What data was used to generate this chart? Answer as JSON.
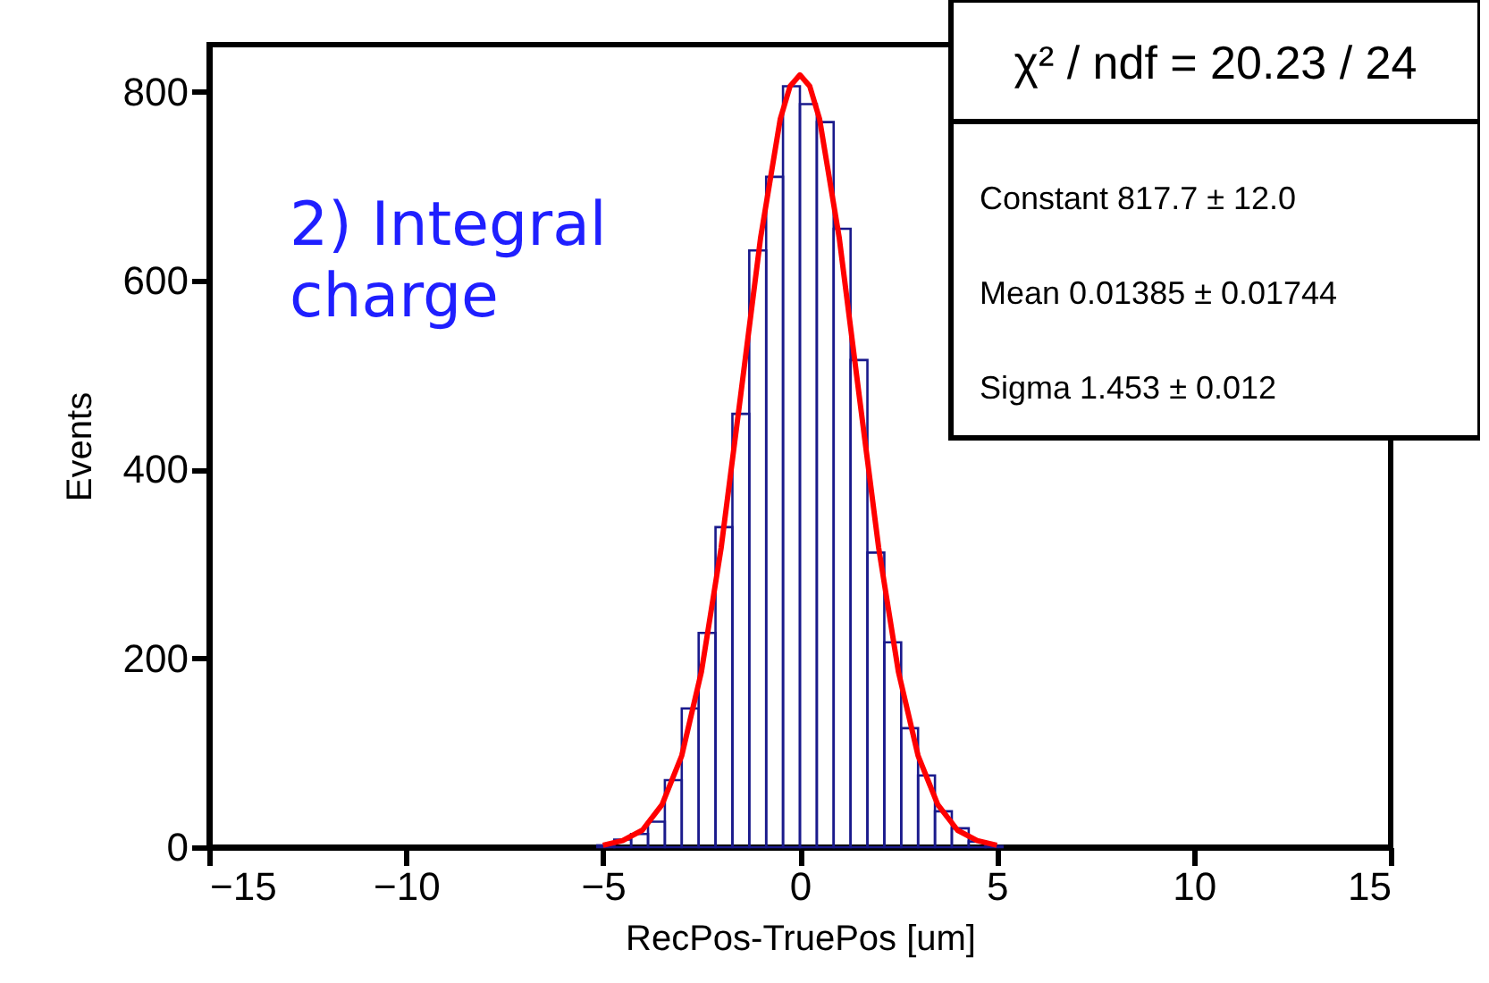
{
  "chart_data": {
    "type": "histogram",
    "xlabel": "RecPos-TruePos [um]",
    "ylabel": "Events",
    "xlim": [
      -15,
      15
    ],
    "xticks": [
      {
        "value": -15,
        "label": "−15"
      },
      {
        "value": -10,
        "label": "−10"
      },
      {
        "value": -5,
        "label": "−5"
      },
      0,
      5,
      10,
      15
    ],
    "ylim": [
      0,
      850
    ],
    "yticks": [
      0,
      200,
      400,
      600,
      800
    ],
    "grid": false,
    "annotations": [
      "2) Integral\ncharge",
      "χ² / ndf = 20.23 / 24",
      "Constant 817.7 ± 12.0",
      "Mean 0.01385 ± 0.01744",
      "Sigma 1.453 ± 0.012"
    ],
    "series": [
      {
        "color": "#1a1a8c",
        "bins": [
          -5.143,
          -4.714,
          -4.286,
          -3.857,
          -3.429,
          -3.0,
          -2.571,
          -2.143,
          -1.714,
          -1.286,
          -0.857,
          -0.429,
          0,
          0.429,
          0.857,
          1.286,
          1.714,
          2.143,
          2.571,
          3.0,
          3.429,
          3.857,
          4.286,
          4.714,
          5.143
        ],
        "values": [
          2,
          8,
          14,
          27,
          71,
          147,
          227,
          339,
          459,
          632,
          710,
          806,
          787,
          768,
          655,
          516,
          312,
          217,
          126,
          76,
          38,
          20,
          6,
          1
        ]
      },
      {
        "type": "line",
        "color": "#ff0000",
        "x": [
          -5,
          -4.5,
          -4,
          -3.5,
          -3,
          -2.5,
          -2,
          -1.5,
          -1,
          -0.5,
          -0.25,
          0,
          0.25,
          0.5,
          1,
          1.5,
          2,
          2.5,
          3,
          3.5,
          4,
          4.5,
          5
        ],
        "values": [
          2,
          7,
          18,
          45,
          97,
          186,
          317,
          480,
          645,
          771,
          806,
          818,
          806,
          771,
          645,
          480,
          317,
          186,
          97,
          45,
          18,
          7,
          2
        ]
      }
    ]
  }
}
